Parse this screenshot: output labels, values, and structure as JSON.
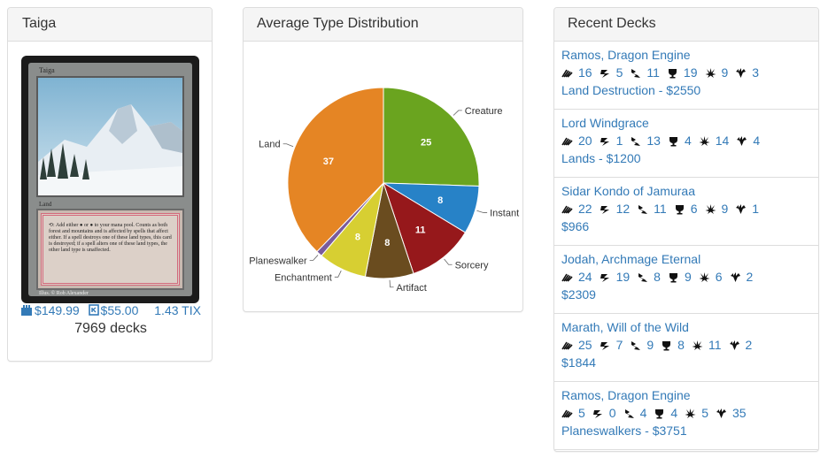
{
  "card_panel": {
    "title": "Taiga",
    "card": {
      "name": "Taiga",
      "type_line": "Land",
      "rules_text": "⟲: Add either ● or ● to your mana pool. Counts as both forest and mountains and is affected by spells that affect either. If a spell destroys one of these land types, this card is destroyed; if a spell alters one of these land types, the other land type is unaffected.",
      "artist": "Illus. © Rob Alexander"
    },
    "prices": {
      "tcg": "$149.99",
      "ck": "$55.00",
      "tix": "1.43 TIX"
    },
    "deck_count": "7969 decks"
  },
  "chart_panel": {
    "title": "Average Type Distribution",
    "chart_data": {
      "type": "pie",
      "slices": [
        {
          "label": "Creature",
          "value": 25,
          "color": "#6aa41f"
        },
        {
          "label": "Instant",
          "value": 8,
          "color": "#2782c7"
        },
        {
          "label": "Sorcery",
          "value": 11,
          "color": "#96181b"
        },
        {
          "label": "Artifact",
          "value": 8,
          "color": "#6a4c1f"
        },
        {
          "label": "Enchantment",
          "value": 8,
          "color": "#d7cf32"
        },
        {
          "label": "Planeswalker",
          "value": 1,
          "color": "#7a5b9c"
        },
        {
          "label": "Land",
          "value": 37,
          "color": "#e58524"
        }
      ],
      "start_angle": "12 o'clock",
      "direction": "clockwise"
    }
  },
  "decks_panel": {
    "title": "Recent Decks",
    "decks": [
      {
        "name": "Ramos, Dragon Engine",
        "stats": [
          "16",
          "5",
          "11",
          "19",
          "9",
          "3"
        ],
        "sub": "Land Destruction - $2550"
      },
      {
        "name": "Lord Windgrace",
        "stats": [
          "20",
          "1",
          "13",
          "4",
          "14",
          "4"
        ],
        "sub": "Lands - $1200"
      },
      {
        "name": "Sidar Kondo of Jamuraa",
        "stats": [
          "22",
          "12",
          "11",
          "6",
          "9",
          "1"
        ],
        "sub": "$966"
      },
      {
        "name": "Jodah, Archmage Eternal",
        "stats": [
          "24",
          "19",
          "8",
          "9",
          "6",
          "2"
        ],
        "sub": "$2309"
      },
      {
        "name": "Marath, Will of the Wild",
        "stats": [
          "25",
          "7",
          "9",
          "8",
          "11",
          "2"
        ],
        "sub": "$1844"
      },
      {
        "name": "Ramos, Dragon Engine",
        "stats": [
          "5",
          "0",
          "4",
          "4",
          "5",
          "35"
        ],
        "sub": "Planeswalkers - $3751"
      }
    ],
    "stat_icons": [
      "casual-icon",
      "aggro-icon",
      "combo-icon",
      "control-icon",
      "fun-icon",
      "budget-icon"
    ],
    "accent_color": "#337ab7"
  }
}
